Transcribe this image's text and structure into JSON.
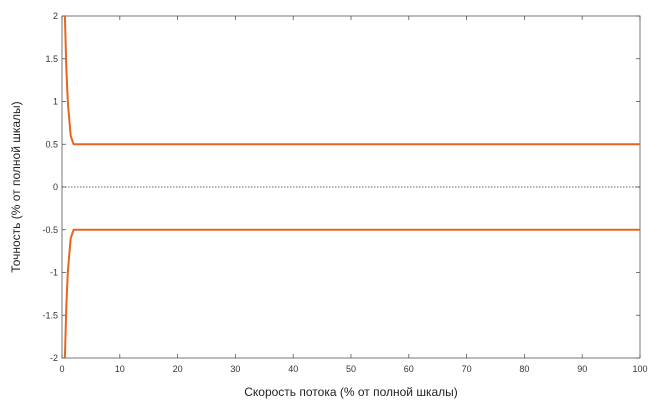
{
  "chart_data": {
    "type": "line",
    "xlabel": "Скорость потока (% от полной шкалы)",
    "ylabel": "Точность (% от полной шкалы)",
    "xlim": [
      0,
      100
    ],
    "ylim": [
      -2,
      2
    ],
    "xticks": [
      "0",
      "10",
      "20",
      "30",
      "40",
      "50",
      "60",
      "70",
      "80",
      "90",
      "100"
    ],
    "yticks": [
      "2",
      "1.5",
      "1",
      "0.5",
      "0",
      "-0.5",
      "-1",
      "-1.5",
      "-2"
    ],
    "grid": false,
    "series": [
      {
        "color": "#e8651e",
        "x": [
          0.5,
          0.75,
          1.0,
          1.25,
          1.5,
          2,
          3,
          5,
          10,
          20,
          50,
          100
        ],
        "y": [
          2.0,
          1.4,
          1.0,
          0.8,
          0.6,
          0.5,
          0.5,
          0.5,
          0.5,
          0.5,
          0.5,
          0.5
        ]
      },
      {
        "color": "#e8651e",
        "x": [
          0.5,
          0.75,
          1.0,
          1.25,
          1.5,
          2,
          3,
          5,
          10,
          20,
          50,
          100
        ],
        "y": [
          -2.0,
          -1.4,
          -1.0,
          -0.8,
          -0.6,
          -0.5,
          -0.5,
          -0.5,
          -0.5,
          -0.5,
          -0.5,
          -0.5
        ]
      },
      {
        "color": "#333333",
        "style": "dotted",
        "x": [
          0,
          100
        ],
        "y": [
          0,
          0
        ]
      }
    ]
  }
}
